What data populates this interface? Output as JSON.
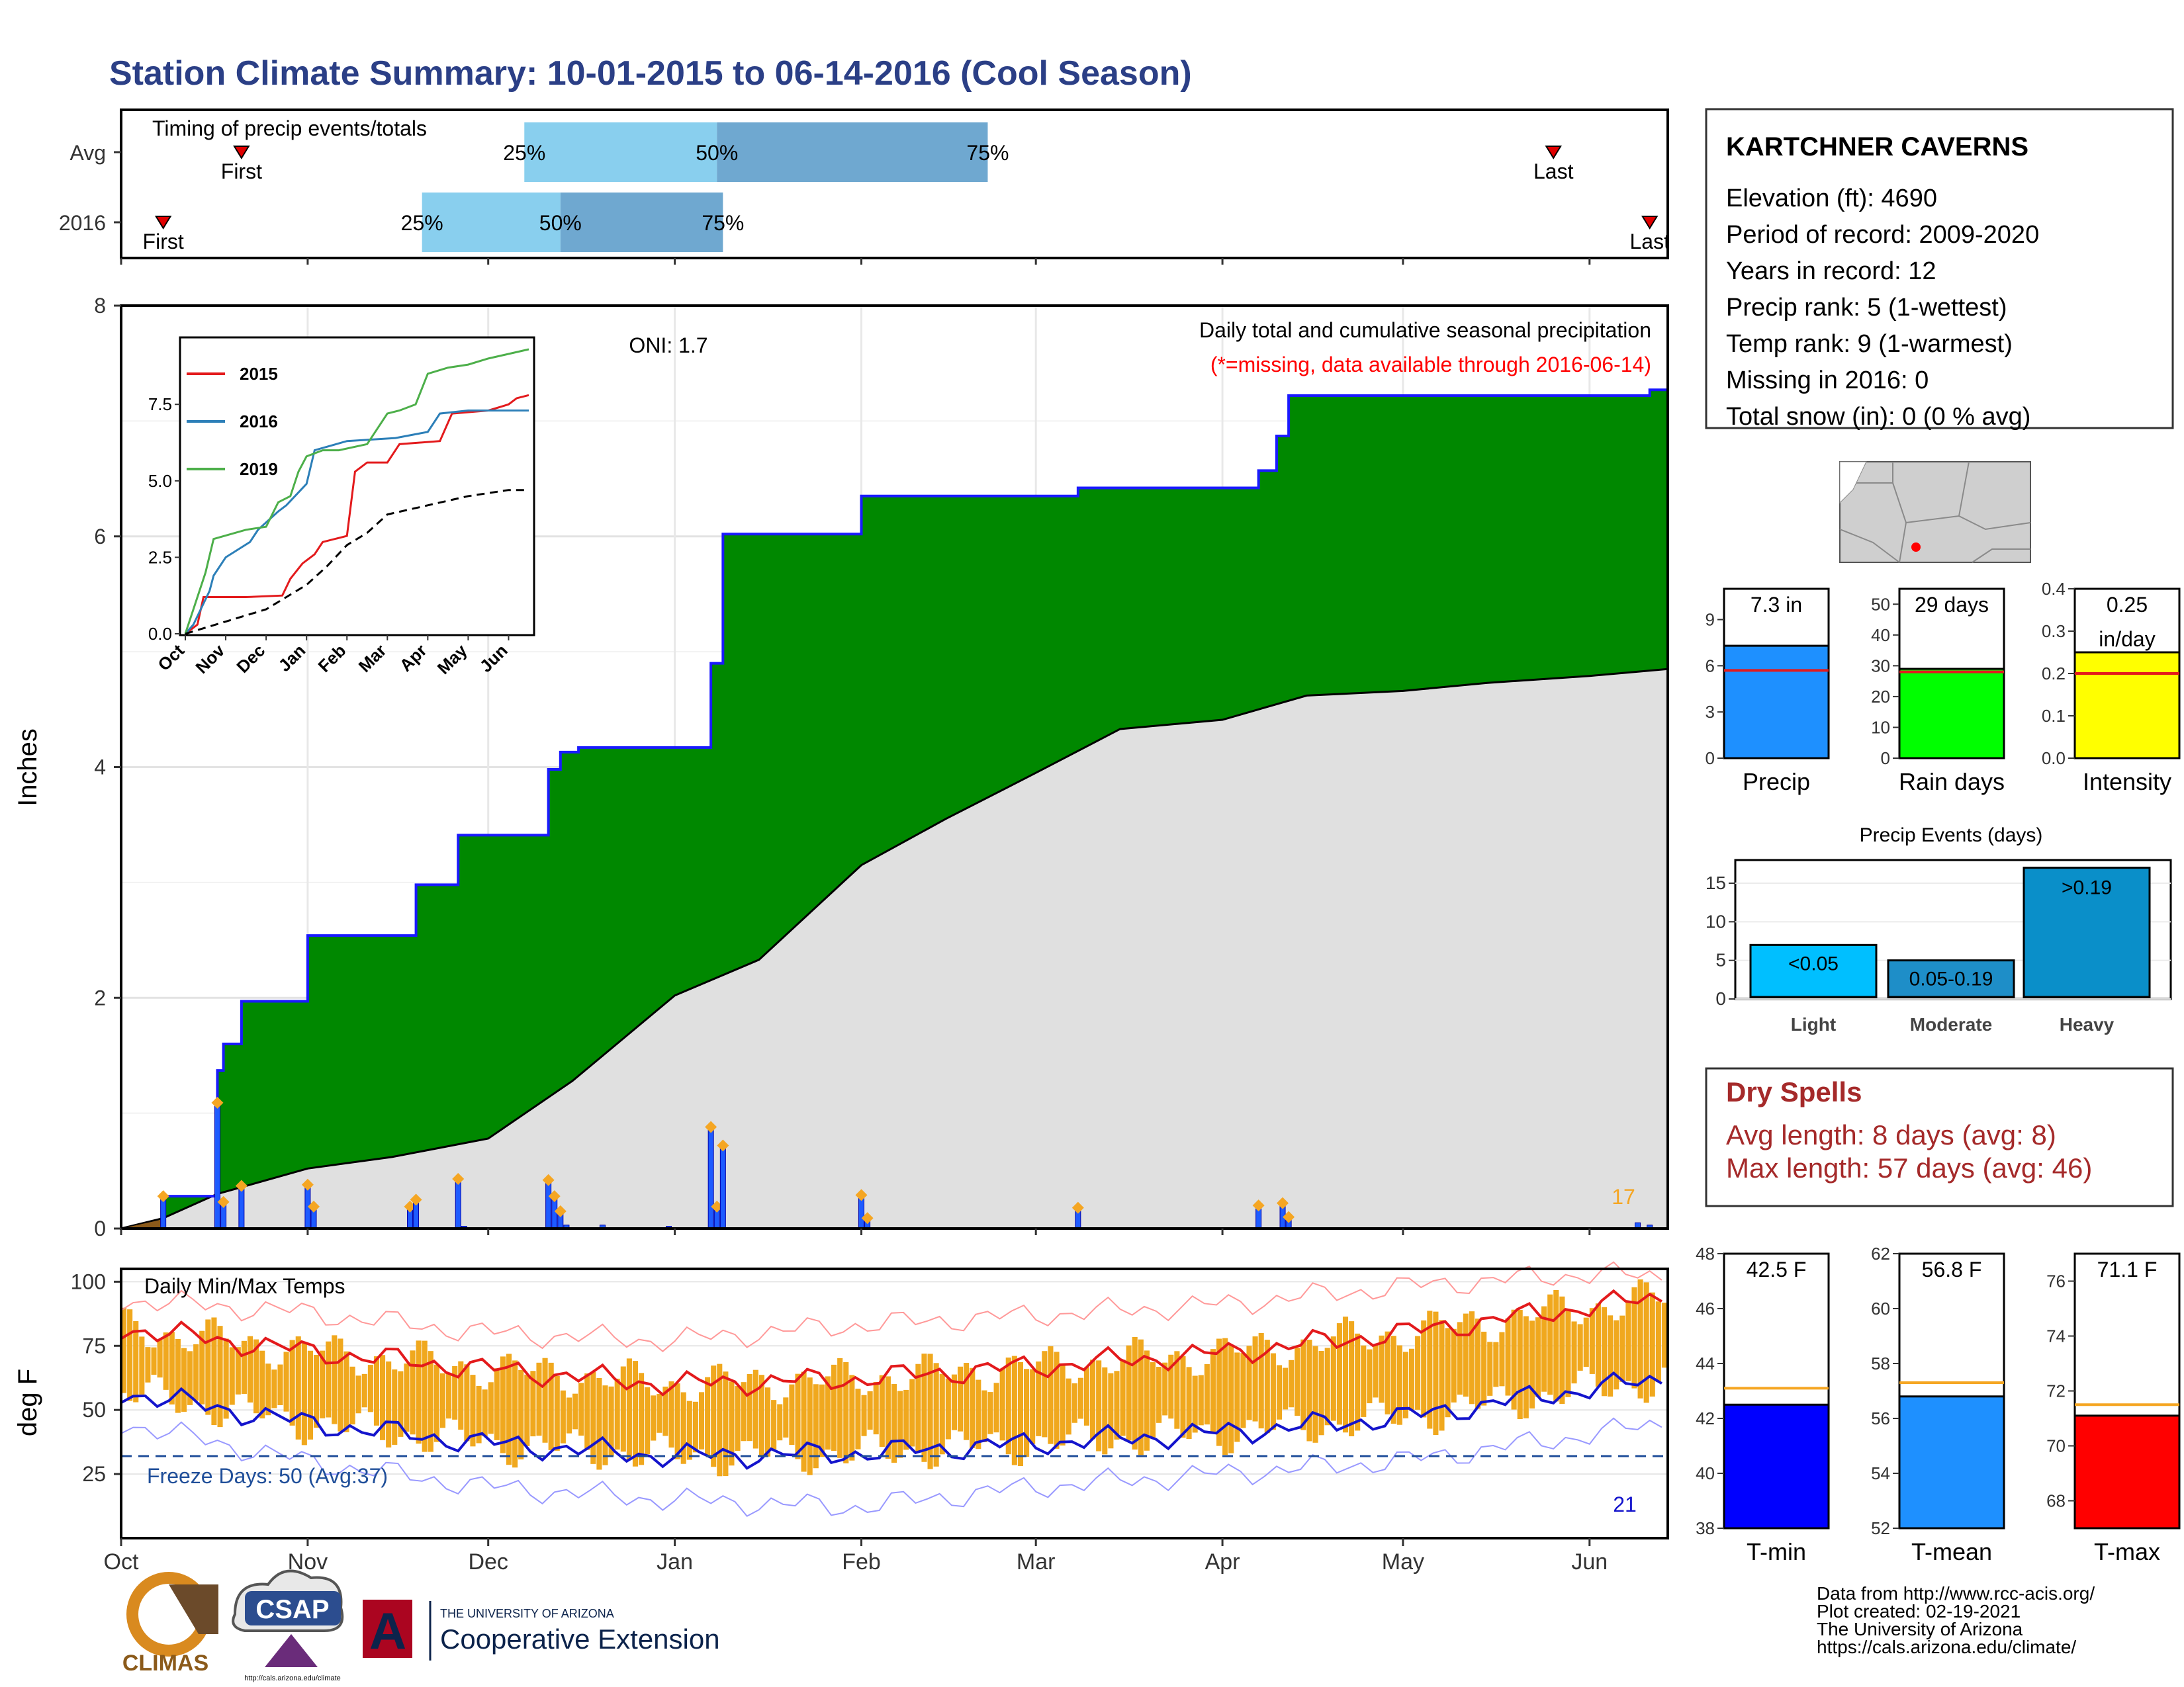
{
  "title": "Station Climate Summary: 10-01-2015 to 06-14-2016 (Cool Season)",
  "timing": {
    "label": "Timing of precip events/totals",
    "rows": [
      {
        "name": "Avg",
        "first": "Oct 21",
        "p25": "Dec 07",
        "p50": "Jan 08",
        "p75": "Feb 22",
        "last": "May 26"
      },
      {
        "name": "2016",
        "first": "Oct 08",
        "p25": "Nov 20",
        "p50": "Dec 13",
        "p75": "Jan 09",
        "last": "Jun 11"
      }
    ],
    "text": {
      "first": "First",
      "last": "Last",
      "p25": "25%",
      "p50": "50%",
      "p75": "75%"
    }
  },
  "main_chart": {
    "ylabel": "Inches",
    "oni": "ONI: 1.7",
    "caption": "Daily total and cumulative seasonal precipitation",
    "missing_note": "(*=missing, data available through 2016-06-14)",
    "count_label": "17",
    "ylim": [
      0,
      8
    ],
    "yticks": [
      0,
      2,
      4,
      6,
      8
    ],
    "colors": {
      "cumulative": "#008800",
      "avg": "#e0e0e0",
      "bars": "#1e5bff",
      "dots": "#f5a623"
    }
  },
  "chart_data": [
    {
      "type": "area",
      "cumulative_2016": [
        [
          "Oct 01",
          0.0
        ],
        [
          "Oct 08",
          0.28
        ],
        [
          "Oct 16",
          0.28
        ],
        [
          "Oct 17",
          1.37
        ],
        [
          "Oct 18",
          1.6
        ],
        [
          "Oct 21",
          1.97
        ],
        [
          "Nov 01",
          2.54
        ],
        [
          "Nov 19",
          2.98
        ],
        [
          "Nov 26",
          3.41
        ],
        [
          "Dec 11",
          3.98
        ],
        [
          "Dec 13",
          4.13
        ],
        [
          "Dec 16",
          4.17
        ],
        [
          "Jan 01",
          4.17
        ],
        [
          "Jan 07",
          4.9
        ],
        [
          "Jan 09",
          6.02
        ],
        [
          "Feb 01",
          6.35
        ],
        [
          "Mar 08",
          6.42
        ],
        [
          "Apr 07",
          6.57
        ],
        [
          "Apr 10",
          6.87
        ],
        [
          "Apr 12",
          7.22
        ],
        [
          "Jun 09",
          7.22
        ],
        [
          "Jun 11",
          7.27
        ],
        [
          "Jun 14",
          7.3
        ]
      ],
      "average": [
        [
          "Oct 01",
          0.0
        ],
        [
          "Oct 08",
          0.09
        ],
        [
          "Oct 17",
          0.3
        ],
        [
          "Nov 01",
          0.52
        ],
        [
          "Nov 15",
          0.62
        ],
        [
          "Dec 01",
          0.78
        ],
        [
          "Dec 15",
          1.28
        ],
        [
          "Jan 01",
          2.02
        ],
        [
          "Jan 15",
          2.33
        ],
        [
          "Feb 01",
          3.15
        ],
        [
          "Feb 15",
          3.55
        ],
        [
          "Mar 01",
          3.95
        ],
        [
          "Mar 15",
          4.33
        ],
        [
          "Apr 01",
          4.41
        ],
        [
          "Apr 15",
          4.62
        ],
        [
          "May 01",
          4.66
        ],
        [
          "May 15",
          4.73
        ],
        [
          "Jun 01",
          4.79
        ],
        [
          "Jun 14",
          4.85
        ]
      ],
      "daily_2016": [
        [
          "Oct 08",
          0.28
        ],
        [
          "Oct 17",
          1.09
        ],
        [
          "Oct 18",
          0.23
        ],
        [
          "Oct 21",
          0.37
        ],
        [
          "Nov 01",
          0.38
        ],
        [
          "Nov 02",
          0.19
        ],
        [
          "Nov 18",
          0.19
        ],
        [
          "Nov 19",
          0.25
        ],
        [
          "Nov 26",
          0.43
        ],
        [
          "Nov 27",
          0.02
        ],
        [
          "Dec 11",
          0.42
        ],
        [
          "Dec 12",
          0.28
        ],
        [
          "Dec 13",
          0.15
        ],
        [
          "Dec 14",
          0.03
        ],
        [
          "Dec 20",
          0.03
        ],
        [
          "Dec 31",
          0.02
        ],
        [
          "Jan 07",
          0.88
        ],
        [
          "Jan 08",
          0.19
        ],
        [
          "Jan 09",
          0.72
        ],
        [
          "Feb 01",
          0.29
        ],
        [
          "Feb 02",
          0.09
        ],
        [
          "Mar 08",
          0.18
        ],
        [
          "Apr 07",
          0.2
        ],
        [
          "Apr 11",
          0.22
        ],
        [
          "Apr 12",
          0.1
        ],
        [
          "Jun 09",
          0.05
        ],
        [
          "Jun 11",
          0.03
        ]
      ]
    },
    {
      "type": "line",
      "title": "",
      "years": [
        "2015",
        "2016",
        "2019"
      ],
      "colors": {
        "2015": "#e31a1c",
        "2016": "#2c7fb8",
        "2019": "#4daf4a",
        "avg": "#000000"
      },
      "xticks": [
        "Oct",
        "Nov",
        "Dec",
        "Jan",
        "Feb",
        "Mar",
        "Apr",
        "May",
        "Jun"
      ],
      "yticks": [
        "0.0",
        "2.5",
        "5.0",
        "7.5"
      ],
      "ylim": [
        0,
        9.3
      ],
      "series": [
        {
          "name": "2015",
          "points": [
            [
              0,
              0
            ],
            [
              0.3,
              0.3
            ],
            [
              0.45,
              1.2
            ],
            [
              1.5,
              1.2
            ],
            [
              2.4,
              1.25
            ],
            [
              2.6,
              1.8
            ],
            [
              2.9,
              2.3
            ],
            [
              3.2,
              2.6
            ],
            [
              3.4,
              3.0
            ],
            [
              4.0,
              3.2
            ],
            [
              4.2,
              5.3
            ],
            [
              4.5,
              5.6
            ],
            [
              5.0,
              5.6
            ],
            [
              5.3,
              6.2
            ],
            [
              6.3,
              6.3
            ],
            [
              6.6,
              7.2
            ],
            [
              7.5,
              7.3
            ],
            [
              8.0,
              7.5
            ],
            [
              8.2,
              7.7
            ],
            [
              8.5,
              7.8
            ]
          ]
        },
        {
          "name": "2016",
          "points": [
            [
              0,
              0
            ],
            [
              0.2,
              0.3
            ],
            [
              0.6,
              1.4
            ],
            [
              0.7,
              1.9
            ],
            [
              1.0,
              2.5
            ],
            [
              1.6,
              3.0
            ],
            [
              1.8,
              3.4
            ],
            [
              2.3,
              4.0
            ],
            [
              2.5,
              4.2
            ],
            [
              3.0,
              4.9
            ],
            [
              3.2,
              6.0
            ],
            [
              4.0,
              6.3
            ],
            [
              5.2,
              6.4
            ],
            [
              6.0,
              6.6
            ],
            [
              6.3,
              7.2
            ],
            [
              7.0,
              7.3
            ],
            [
              8.4,
              7.3
            ],
            [
              8.5,
              7.3
            ]
          ]
        },
        {
          "name": "2019",
          "points": [
            [
              0,
              0
            ],
            [
              0.3,
              1.2
            ],
            [
              0.5,
              2.0
            ],
            [
              0.7,
              3.1
            ],
            [
              1.5,
              3.4
            ],
            [
              2.0,
              3.5
            ],
            [
              2.3,
              4.3
            ],
            [
              2.6,
              4.5
            ],
            [
              2.8,
              5.3
            ],
            [
              3.0,
              5.8
            ],
            [
              3.4,
              6.0
            ],
            [
              3.8,
              6.0
            ],
            [
              4.5,
              6.2
            ],
            [
              5.0,
              7.2
            ],
            [
              5.3,
              7.3
            ],
            [
              5.7,
              7.5
            ],
            [
              6.0,
              8.5
            ],
            [
              6.5,
              8.7
            ],
            [
              7.0,
              8.8
            ],
            [
              7.5,
              9.0
            ],
            [
              8.5,
              9.3
            ]
          ]
        },
        {
          "name": "",
          "points": [
            [
              0,
              0
            ],
            [
              1.0,
              0.4
            ],
            [
              2.0,
              0.8
            ],
            [
              3.0,
              1.6
            ],
            [
              3.5,
              2.2
            ],
            [
              4.0,
              2.9
            ],
            [
              4.5,
              3.3
            ],
            [
              5.0,
              3.9
            ],
            [
              6.0,
              4.2
            ],
            [
              7.0,
              4.5
            ],
            [
              8.0,
              4.7
            ],
            [
              8.5,
              4.7
            ]
          ]
        }
      ]
    },
    {
      "type": "line",
      "title": "Daily Min/Max Temps",
      "ylabel": "deg F",
      "yticks": [
        25,
        50,
        75,
        100
      ],
      "ylim": [
        0,
        105
      ],
      "xticks": [
        "Oct",
        "Nov",
        "Dec",
        "Jan",
        "Feb",
        "Mar",
        "Apr",
        "May",
        "Jun"
      ],
      "max_avg": [
        [
          0,
          82
        ],
        [
          1,
          73
        ],
        [
          2,
          66
        ],
        [
          3,
          60
        ],
        [
          4,
          62
        ],
        [
          5,
          67
        ],
        [
          6,
          72
        ],
        [
          7,
          80
        ],
        [
          8,
          90
        ],
        [
          8.45,
          94
        ]
      ],
      "min_avg": [
        [
          0,
          57
        ],
        [
          1,
          45
        ],
        [
          2,
          37
        ],
        [
          3,
          32
        ],
        [
          4,
          33
        ],
        [
          5,
          37
        ],
        [
          6,
          41
        ],
        [
          7,
          47
        ],
        [
          8,
          58
        ],
        [
          8.45,
          62
        ]
      ],
      "record_high": [
        [
          0,
          93
        ],
        [
          1,
          88
        ],
        [
          2,
          80
        ],
        [
          3,
          77
        ],
        [
          4,
          83
        ],
        [
          5,
          87
        ],
        [
          6,
          91
        ],
        [
          7,
          98
        ],
        [
          8,
          103
        ],
        [
          8.45,
          102
        ]
      ],
      "record_low": [
        [
          0,
          45
        ],
        [
          1,
          30
        ],
        [
          2,
          20
        ],
        [
          3,
          15
        ],
        [
          4,
          12
        ],
        [
          5,
          20
        ],
        [
          6,
          25
        ],
        [
          7,
          30
        ],
        [
          8,
          40
        ],
        [
          8.45,
          45
        ]
      ],
      "freeze_line": 32,
      "freeze_label": "Freeze Days: 50 (Avg:37)",
      "count_label": "21",
      "colors": {
        "bars": "#f0a81e",
        "max": "#e31a1c",
        "min": "#1414cc",
        "record_high": "#ff9999",
        "record_low": "#9999ff",
        "freeze": "#1f4e99"
      }
    },
    {
      "type": "bar",
      "title": "",
      "categories": [
        "Precip"
      ],
      "values": [
        7.3
      ],
      "avg": 5.7,
      "label": "7.3 in",
      "ylim": [
        0,
        11
      ],
      "yticks": [
        0,
        3,
        6,
        9
      ],
      "color": "#1e90ff"
    },
    {
      "type": "bar",
      "categories": [
        "Rain days"
      ],
      "values": [
        29
      ],
      "avg": 28,
      "label": "29 days",
      "ylim": [
        0,
        55
      ],
      "yticks": [
        0,
        10,
        20,
        30,
        40,
        50
      ],
      "color": "#00ff00"
    },
    {
      "type": "bar",
      "categories": [
        "Intensity"
      ],
      "values": [
        0.25
      ],
      "avg": 0.2,
      "label": "0.25 in/day",
      "ylim": [
        0,
        0.4
      ],
      "yticks": [
        "0.0",
        "0.1",
        "0.2",
        "0.3",
        "0.4"
      ],
      "color": "#ffff00"
    },
    {
      "type": "bar",
      "title": "Precip Events (days)",
      "categories": [
        "Light",
        "Moderate",
        "Heavy"
      ],
      "values": [
        7,
        5,
        17
      ],
      "labels": [
        "<0.05",
        "0.05-0.19",
        ">0.19"
      ],
      "ylim": [
        0,
        17
      ],
      "yticks": [
        0,
        5,
        10,
        15
      ],
      "colors": [
        "#00bfff",
        "#1e8ec8",
        "#0a8fc9"
      ]
    },
    {
      "type": "bar",
      "categories": [
        "T-min"
      ],
      "values": [
        42.5
      ],
      "avg": 43.1,
      "label": "42.5 F",
      "ylim": [
        38,
        48
      ],
      "yticks": [
        38,
        40,
        42,
        44,
        46,
        48
      ],
      "color": "#0000ff"
    },
    {
      "type": "bar",
      "categories": [
        "T-mean"
      ],
      "values": [
        56.8
      ],
      "avg": 57.3,
      "label": "56.8 F",
      "ylim": [
        52,
        62
      ],
      "yticks": [
        52,
        54,
        56,
        58,
        60,
        62
      ],
      "color": "#1e90ff"
    },
    {
      "type": "bar",
      "categories": [
        "T-max"
      ],
      "values": [
        71.1
      ],
      "avg": 71.5,
      "label": "71.1 F",
      "ylim": [
        67,
        77
      ],
      "yticks": [
        68,
        70,
        72,
        74,
        76
      ],
      "color": "#ff0000"
    }
  ],
  "station": {
    "name": "KARTCHNER CAVERNS",
    "lines": [
      "Elevation (ft): 4690",
      "Period of record: 2009-2020",
      "Years in record: 12",
      "Precip rank: 5 (1-wettest)",
      "Temp rank: 9 (1-warmest)",
      "Missing in 2016: 0",
      "Total snow (in): 0 (0 % avg)"
    ]
  },
  "dry_spells": {
    "title": "Dry Spells",
    "avg": "Avg length: 8 days (avg: 8)",
    "max": "Max length: 57 days (avg: 46)"
  },
  "months": [
    "Oct",
    "Nov",
    "Dec",
    "Jan",
    "Feb",
    "Mar",
    "Apr",
    "May",
    "Jun"
  ],
  "footer": {
    "lines": [
      "Data from http://www.rcc-acis.org/",
      "Plot created: 02-19-2021",
      "The University of Arizona",
      "https://cals.arizona.edu/climate/"
    ],
    "climas": "CLIMAS",
    "csap": "CSAP",
    "csap_url": "http://cals.arizona.edu/climate",
    "ua_small": "THE UNIVERSITY OF ARIZONA",
    "ua_big": "Cooperative Extension"
  }
}
